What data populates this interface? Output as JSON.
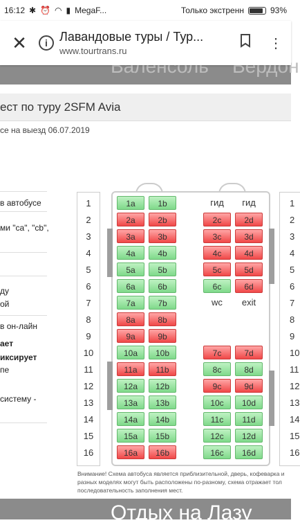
{
  "status": {
    "time": "16:12",
    "carrier": "MegaF...",
    "mode": "Только экстренн",
    "battery": "93%"
  },
  "toolbar": {
    "title": "Лавандовые туры / Тур...",
    "url": "www.tourtrans.ru"
  },
  "hero": {
    "left": "Валенсоль",
    "right": "Вердон"
  },
  "page": {
    "title": "ест по туру 2SFM Avia",
    "subtitle": "се на выезд 06.07.2019",
    "side": [
      "в автобусе",
      "ми \"ca\", \"cb\",",
      "ду",
      "ой",
      "в он-лайн",
      "ает",
      "иксирует",
      "пе",
      "систему -"
    ],
    "note": "Внимание! Схема автобуса является приблизительной, дверь, кофеварка и разных моделях могут быть расположены по-разному, схема отражает тол последовательность заполнения мест.",
    "bottom": "Отдых на Лазу"
  },
  "bus": {
    "rows": [
      "1",
      "2",
      "3",
      "4",
      "5",
      "6",
      "7",
      "8",
      "9",
      "10",
      "11",
      "12",
      "13",
      "14",
      "15",
      "16"
    ],
    "labels": {
      "guide": "гид",
      "wc": "wc",
      "exit": "exit"
    },
    "seats_left": [
      [
        "1a",
        "free"
      ],
      [
        "1b",
        "free"
      ],
      [
        "2a",
        "taken"
      ],
      [
        "2b",
        "taken"
      ],
      [
        "3a",
        "taken"
      ],
      [
        "3b",
        "taken"
      ],
      [
        "4a",
        "free"
      ],
      [
        "4b",
        "free"
      ],
      [
        "5a",
        "free"
      ],
      [
        "5b",
        "free"
      ],
      [
        "6a",
        "free"
      ],
      [
        "6b",
        "free"
      ],
      [
        "7a",
        "free"
      ],
      [
        "7b",
        "free"
      ],
      [
        "8a",
        "taken"
      ],
      [
        "8b",
        "taken"
      ],
      [
        "9a",
        "taken"
      ],
      [
        "9b",
        "taken"
      ],
      [
        "10a",
        "free"
      ],
      [
        "10b",
        "free"
      ],
      [
        "11a",
        "taken"
      ],
      [
        "11b",
        "taken"
      ],
      [
        "12a",
        "free"
      ],
      [
        "12b",
        "free"
      ],
      [
        "13a",
        "free"
      ],
      [
        "13b",
        "free"
      ],
      [
        "14a",
        "free"
      ],
      [
        "14b",
        "free"
      ],
      [
        "15a",
        "free"
      ],
      [
        "15b",
        "free"
      ],
      [
        "16a",
        "taken"
      ],
      [
        "16b",
        "taken"
      ]
    ],
    "seats_right": [
      [
        "2c",
        "taken",
        2
      ],
      [
        "2d",
        "taken",
        2
      ],
      [
        "3c",
        "taken",
        3
      ],
      [
        "3d",
        "taken",
        3
      ],
      [
        "4c",
        "taken",
        4
      ],
      [
        "4d",
        "taken",
        4
      ],
      [
        "5c",
        "taken",
        5
      ],
      [
        "5d",
        "taken",
        5
      ],
      [
        "6c",
        "free",
        6
      ],
      [
        "6d",
        "taken",
        6
      ],
      [
        "7c",
        "taken",
        10
      ],
      [
        "7d",
        "taken",
        10
      ],
      [
        "8c",
        "free",
        11
      ],
      [
        "8d",
        "free",
        11
      ],
      [
        "9c",
        "taken",
        12
      ],
      [
        "9d",
        "taken",
        12
      ],
      [
        "10c",
        "free",
        13
      ],
      [
        "10d",
        "free",
        13
      ],
      [
        "11c",
        "free",
        14
      ],
      [
        "11d",
        "free",
        14
      ],
      [
        "12c",
        "free",
        15
      ],
      [
        "12d",
        "free",
        15
      ],
      [
        "16c",
        "free",
        16
      ],
      [
        "16d",
        "free",
        16
      ]
    ]
  }
}
